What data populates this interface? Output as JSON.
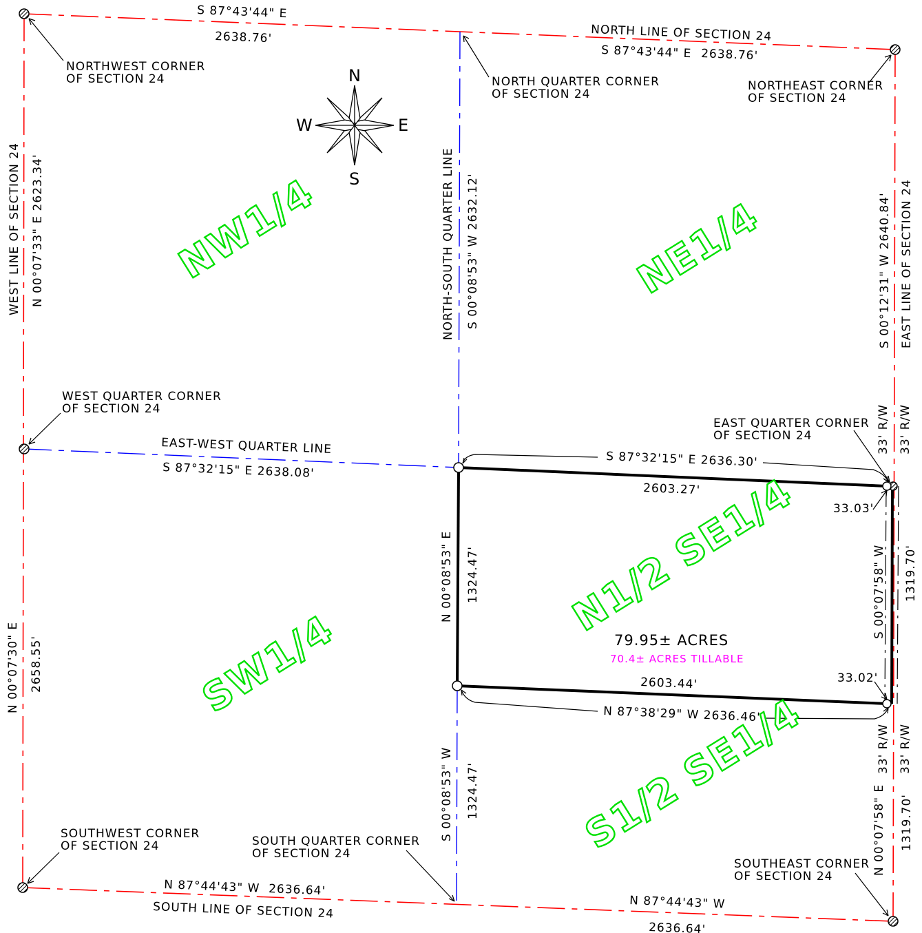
{
  "section_lines": {
    "north_bearing_left": "S 87°43'44\" E",
    "north_dist_left": "2638.76'",
    "north_title": "NORTH LINE OF SECTION 24",
    "north_bearing_right": "S 87°43'44\" E",
    "north_dist_right": "2638.76'",
    "west_title": "WEST LINE OF SECTION 24",
    "west_upper": "N 00°07'33\" E  2623.34'",
    "west_lower_bearing": "N 00°07'30\" E",
    "west_lower_dist": "2658.55'",
    "east_upper": "S 00°12'31\" W  2640.84'",
    "east_title": "EAST LINE OF SECTION 24",
    "south_bearing_left": "N 87°44'43\" W",
    "south_dist_left": "2636.64'",
    "south_title": "SOUTH LINE OF SECTION 24",
    "south_bearing_right": "N 87°44'43\" W",
    "south_dist_right": "2636.64'"
  },
  "quarter_lines": {
    "ns_title": "NORTH-SOUTH QUARTER LINE",
    "ns_upper": "S 00°08'53\" W  2632.12'",
    "ns_mid_bearing": "N 00°08'53\" E",
    "ns_mid_dist": "1324.47'",
    "ns_lower_bearing": "S 00°08'53\" W",
    "ns_lower_dist": "1324.47'",
    "ew_title": "EAST-WEST QUARTER LINE",
    "ew_left": "S 87°32'15\" E   2638.08'",
    "ew_right": "S 87°32'15\" E   2636.30'"
  },
  "parcel": {
    "north_dist": "2603.27'",
    "south_dist": "2603.44'",
    "south_bearing": "N 87°38'29\" W   2636.46'",
    "ne_offset": "33.03'",
    "se_offset": "33.02'",
    "east_bearing": "S 00°07'58\" W",
    "east_dist": "1319.70'",
    "se_lower_bearing": "N 00°07'58\" E",
    "se_lower_dist": "1319.70'",
    "rw_label": "33'  R/W"
  },
  "corners": {
    "nw": [
      "NORTHWEST CORNER",
      "OF SECTION 24"
    ],
    "nq": [
      "NORTH QUARTER CORNER",
      "OF SECTION 24"
    ],
    "ne": [
      "NORTHEAST CORNER",
      "OF SECTION 24"
    ],
    "wq": [
      "WEST QUARTER CORNER",
      "OF SECTION 24"
    ],
    "eq": [
      "EAST QUARTER CORNER",
      "OF SECTION 24"
    ],
    "sw": [
      "SOUTHWEST CORNER",
      "OF SECTION 24"
    ],
    "sq": [
      "SOUTH QUARTER CORNER",
      "OF SECTION 24"
    ],
    "se": [
      "SOUTHEAST CORNER",
      "OF SECTION 24"
    ]
  },
  "quarters": {
    "nw": "NW1/4",
    "ne": "NE1/4",
    "sw": "SW1/4",
    "n_se": "N1/2 SE1/4",
    "s_se": "S1/2 SE1/4"
  },
  "area": {
    "acres": "79.95± ACRES",
    "tillable": "70.4± ACRES TILLABLE"
  },
  "compass": {
    "n": "N",
    "s": "S",
    "e": "E",
    "w": "W"
  },
  "colors": {
    "section_line": "#ff0000",
    "quarter_line": "#0000ff",
    "parcel_line": "#000000",
    "quarter_label": "#00e000",
    "tillable": "#ff00ff"
  }
}
